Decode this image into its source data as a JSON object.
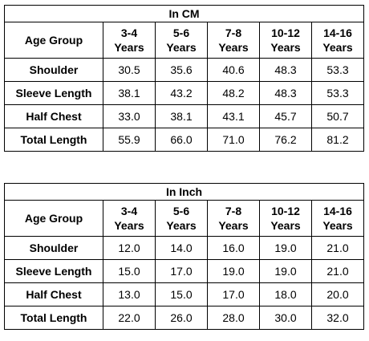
{
  "tables": [
    {
      "title": "In CM",
      "age_group_label": "Age Group",
      "columns": [
        {
          "range": "3-4",
          "unit": "Years"
        },
        {
          "range": "5-6",
          "unit": "Years"
        },
        {
          "range": "7-8",
          "unit": "Years"
        },
        {
          "range": "10-12",
          "unit": "Years"
        },
        {
          "range": "14-16",
          "unit": "Years"
        }
      ],
      "rows": [
        {
          "label": "Shoulder",
          "values": [
            "30.5",
            "35.6",
            "40.6",
            "48.3",
            "53.3"
          ]
        },
        {
          "label": "Sleeve Length",
          "values": [
            "38.1",
            "43.2",
            "48.2",
            "48.3",
            "53.3"
          ]
        },
        {
          "label": "Half Chest",
          "values": [
            "33.0",
            "38.1",
            "43.1",
            "45.7",
            "50.7"
          ]
        },
        {
          "label": "Total Length",
          "values": [
            "55.9",
            "66.0",
            "71.0",
            "76.2",
            "81.2"
          ]
        }
      ]
    },
    {
      "title": "In Inch",
      "age_group_label": "Age Group",
      "columns": [
        {
          "range": "3-4",
          "unit": "Years"
        },
        {
          "range": "5-6",
          "unit": "Years"
        },
        {
          "range": "7-8",
          "unit": "Years"
        },
        {
          "range": "10-12",
          "unit": "Years"
        },
        {
          "range": "14-16",
          "unit": "Years"
        }
      ],
      "rows": [
        {
          "label": "Shoulder",
          "values": [
            "12.0",
            "14.0",
            "16.0",
            "19.0",
            "21.0"
          ]
        },
        {
          "label": "Sleeve Length",
          "values": [
            "15.0",
            "17.0",
            "19.0",
            "19.0",
            "21.0"
          ]
        },
        {
          "label": "Half Chest",
          "values": [
            "13.0",
            "15.0",
            "17.0",
            "18.0",
            "20.0"
          ]
        },
        {
          "label": "Total Length",
          "values": [
            "22.0",
            "26.0",
            "28.0",
            "30.0",
            "32.0"
          ]
        }
      ]
    }
  ]
}
